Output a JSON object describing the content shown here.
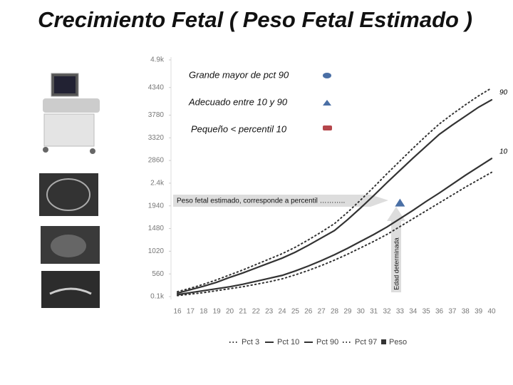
{
  "title": "Crecimiento Fetal ( Peso Fetal Estimado )",
  "chart_data": {
    "type": "line",
    "categories": [
      "16",
      "17",
      "18",
      "19",
      "20",
      "21",
      "22",
      "23",
      "24",
      "25",
      "26",
      "27",
      "28",
      "29",
      "30",
      "31",
      "32",
      "33",
      "34",
      "35",
      "36",
      "37",
      "38",
      "39",
      "40"
    ],
    "ylim": [
      100,
      4900
    ],
    "yticks": [
      {
        "value": 100,
        "label": "0.1k"
      },
      560,
      1020,
      1480,
      1940,
      {
        "value": 2400,
        "label": "2.4k"
      },
      2860,
      3320,
      3780,
      4340,
      {
        "value": 4900,
        "label": "4.9k"
      }
    ],
    "grid": false,
    "series": [
      {
        "name": "Pct 3",
        "color": "#333333",
        "style": "dotted",
        "values": [
          120,
          150,
          180,
          220,
          260,
          300,
          350,
          400,
          460,
          540,
          630,
          730,
          840,
          960,
          1090,
          1220,
          1360,
          1520,
          1680,
          1840,
          2000,
          2160,
          2320,
          2470,
          2620
        ]
      },
      {
        "name": "Pct 10",
        "color": "#333333",
        "style": "solid",
        "values": [
          140,
          180,
          220,
          260,
          300,
          350,
          410,
          470,
          530,
          620,
          720,
          830,
          950,
          1080,
          1220,
          1360,
          1510,
          1680,
          1850,
          2030,
          2200,
          2380,
          2560,
          2730,
          2900
        ]
      },
      {
        "name": "Pct 90",
        "color": "#333333",
        "style": "solid",
        "values": [
          170,
          240,
          310,
          390,
          490,
          580,
          680,
          780,
          880,
          1000,
          1140,
          1290,
          1440,
          1660,
          1900,
          2150,
          2410,
          2660,
          2910,
          3150,
          3390,
          3580,
          3760,
          3940,
          4090
        ]
      },
      {
        "name": "Pct 97",
        "color": "#333333",
        "style": "dotted",
        "values": [
          200,
          270,
          350,
          440,
          540,
          640,
          750,
          860,
          970,
          1100,
          1250,
          1410,
          1580,
          1810,
          2060,
          2320,
          2590,
          2850,
          3110,
          3360,
          3600,
          3800,
          3990,
          4170,
          4330
        ]
      },
      {
        "name": "Peso",
        "color": "#4a6fa5",
        "style": "marker",
        "values": [
          null,
          null,
          null,
          null,
          null,
          null,
          null,
          null,
          null,
          null,
          null,
          null,
          null,
          null,
          null,
          null,
          null,
          2000,
          null,
          null,
          null,
          null,
          null,
          null,
          null
        ]
      }
    ],
    "line_labels": [
      "90",
      "10"
    ],
    "key": [
      "Grande mayor de pct 90",
      "Adecuado entre 10 y 90",
      "Pequeño < percentil 10"
    ],
    "annotations": [
      "Peso fetal estimado, corresponde a percentil  ………..",
      "Edad determinada"
    ]
  }
}
